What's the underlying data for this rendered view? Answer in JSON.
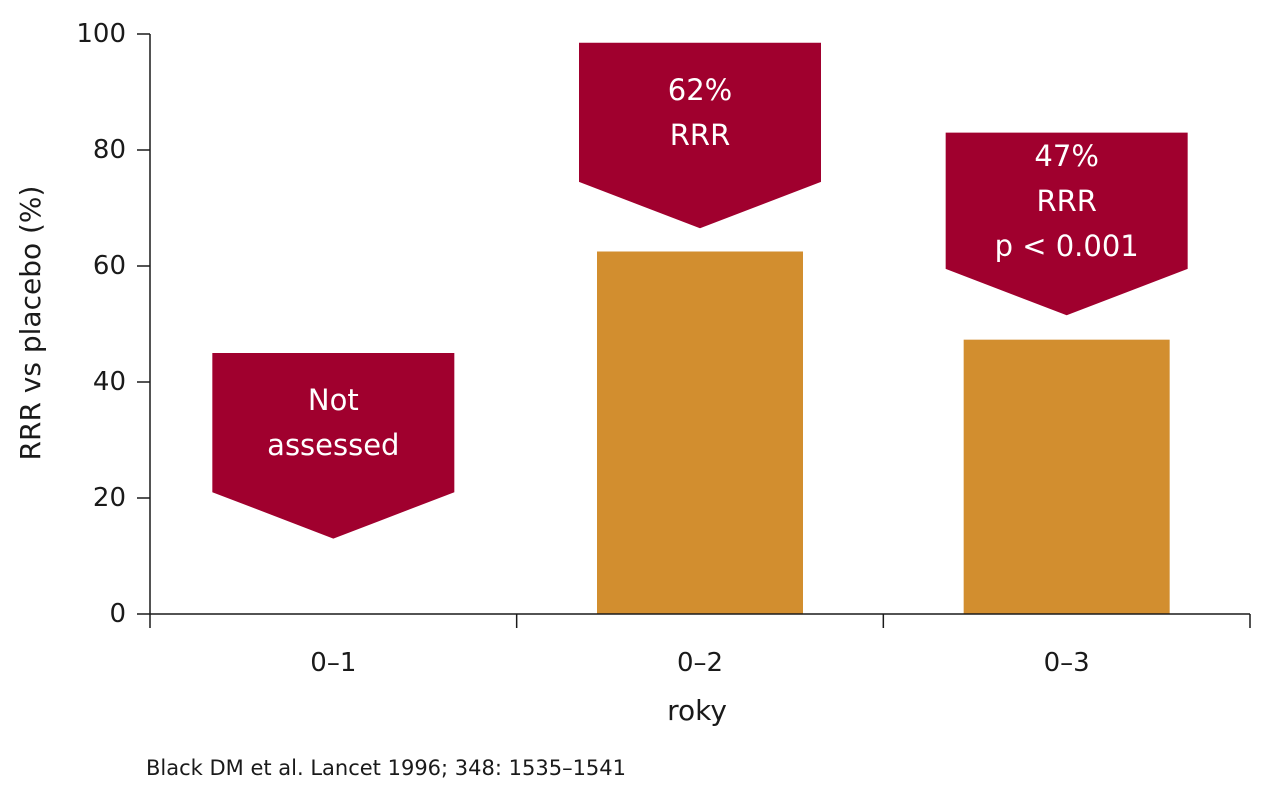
{
  "chart_data": {
    "type": "bar",
    "categories": [
      "0–1",
      "0–2",
      "0–3"
    ],
    "values": [
      null,
      62.5,
      47.3
    ],
    "xlabel": "roky",
    "ylabel": "RRR vs placebo (%)",
    "ylim": [
      0,
      100
    ],
    "yticks": [
      0,
      20,
      40,
      60,
      80,
      100
    ],
    "grid": false,
    "legend": "none",
    "bar_color": "#d28e2f",
    "callout_color": "#a0002e",
    "callouts": [
      {
        "category_index": 0,
        "lines": [
          "Not",
          "assessed"
        ],
        "top": 45,
        "shoulder": 21,
        "tip": 13
      },
      {
        "category_index": 1,
        "lines": [
          "62%",
          "RRR"
        ],
        "top": 98.5,
        "shoulder": 74.5,
        "tip": 66.5
      },
      {
        "category_index": 2,
        "lines": [
          "47%",
          "RRR",
          "p < 0.001"
        ],
        "top": 83,
        "shoulder": 59.5,
        "tip": 51.5
      }
    ]
  },
  "footer": {
    "source": "Black DM et al. Lancet 1996; 348: 1535–1541"
  }
}
